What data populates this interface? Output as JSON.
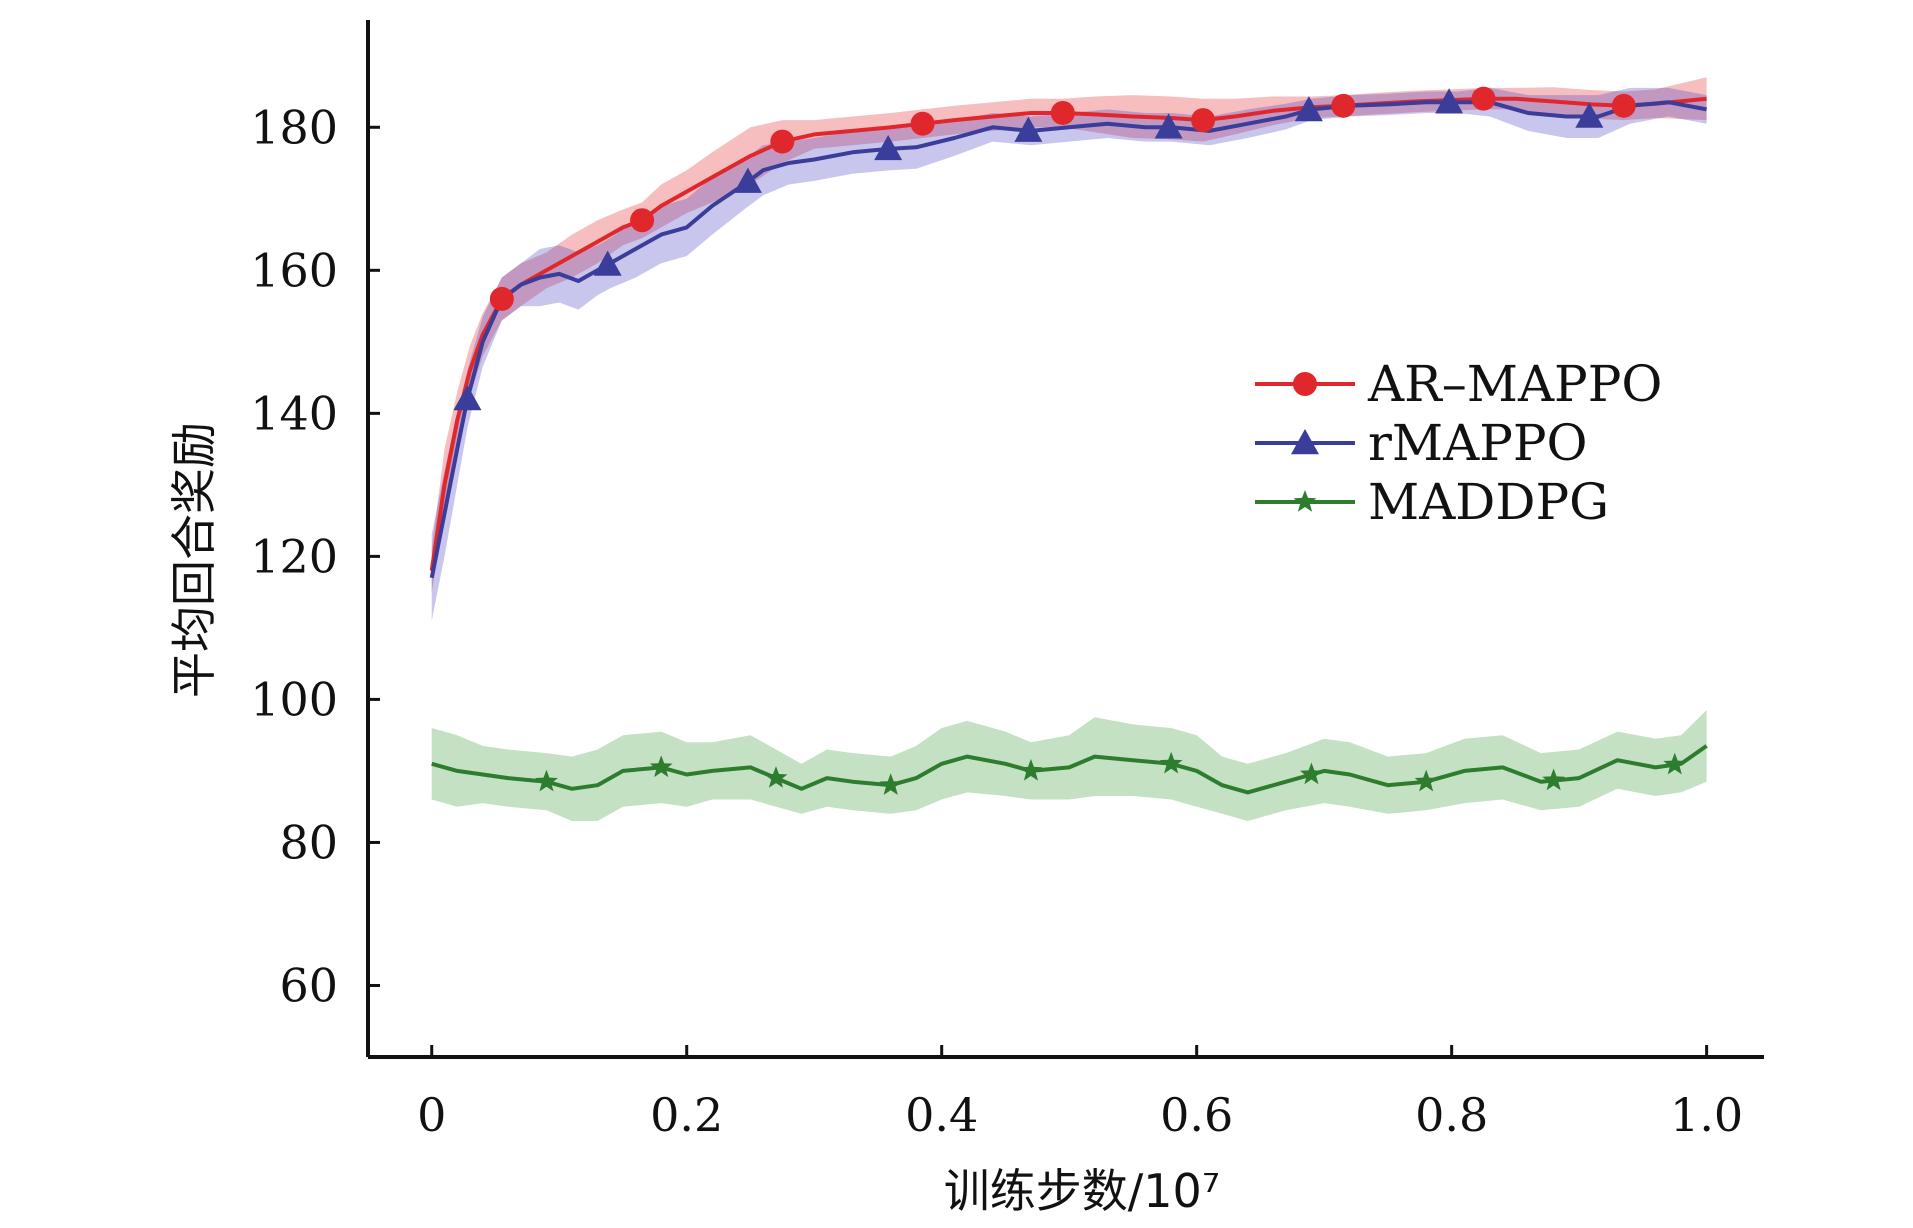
{
  "chart_data": {
    "type": "line",
    "xlabel": "训练步数/10⁷",
    "ylabel": "平均回合奖励",
    "xlim": [
      -0.05,
      1.045
    ],
    "ylim": [
      50,
      195
    ],
    "xticks": [
      0,
      0.2,
      0.4,
      0.6,
      0.8,
      1.0
    ],
    "xtick_labels": [
      "0",
      "0.2",
      "0.4",
      "0.6",
      "0.8",
      "1.0"
    ],
    "yticks": [
      60,
      80,
      100,
      120,
      140,
      160,
      180
    ],
    "ytick_labels": [
      "60",
      "80",
      "100",
      "120",
      "140",
      "160",
      "180"
    ],
    "grid": false,
    "legend_position": "right-middle",
    "series": [
      {
        "name": "AR–MAPPO",
        "color": "#e0282c",
        "band_color": "#e0282c",
        "marker": "circle",
        "x": [
          0,
          0.01,
          0.02,
          0.03,
          0.04,
          0.055,
          0.07,
          0.09,
          0.11,
          0.13,
          0.15,
          0.165,
          0.18,
          0.2,
          0.22,
          0.25,
          0.275,
          0.3,
          0.33,
          0.36,
          0.385,
          0.41,
          0.44,
          0.47,
          0.495,
          0.52,
          0.55,
          0.58,
          0.605,
          0.63,
          0.66,
          0.69,
          0.715,
          0.74,
          0.77,
          0.8,
          0.825,
          0.85,
          0.88,
          0.91,
          0.935,
          0.96,
          1.0
        ],
        "y": [
          118,
          130,
          139,
          146,
          151,
          156,
          158,
          160,
          162,
          164,
          166,
          167,
          169,
          171,
          173,
          176,
          178,
          179,
          179.5,
          180,
          180.5,
          181,
          181.5,
          182,
          182,
          181.8,
          181.5,
          181.3,
          181,
          181.5,
          182.3,
          182.8,
          183,
          183.3,
          183.6,
          183.8,
          184,
          184,
          183.6,
          183.2,
          183,
          183.3,
          184
        ],
        "band": [
          3,
          5,
          4,
          3.5,
          3,
          3,
          3,
          2.5,
          3,
          3,
          2.5,
          2.5,
          3,
          3,
          3.5,
          4,
          3,
          2,
          2,
          2,
          2,
          2,
          2,
          2,
          2,
          2.5,
          3,
          3,
          3,
          2.5,
          2,
          1.5,
          1.5,
          1.5,
          1.5,
          1.5,
          1.5,
          1.5,
          2,
          2,
          2,
          2,
          3
        ],
        "marker_x": [
          0.055,
          0.165,
          0.275,
          0.385,
          0.495,
          0.605,
          0.715,
          0.825,
          0.935
        ]
      },
      {
        "name": "rMAPPO",
        "color": "#3a3d9a",
        "band_color": "#4a42c2",
        "marker": "triangle",
        "x": [
          0,
          0.01,
          0.02,
          0.028,
          0.04,
          0.055,
          0.07,
          0.085,
          0.1,
          0.115,
          0.13,
          0.14,
          0.16,
          0.18,
          0.2,
          0.22,
          0.245,
          0.26,
          0.28,
          0.3,
          0.33,
          0.36,
          0.38,
          0.41,
          0.44,
          0.47,
          0.5,
          0.53,
          0.56,
          0.58,
          0.61,
          0.64,
          0.67,
          0.69,
          0.72,
          0.75,
          0.78,
          0.805,
          0.83,
          0.86,
          0.89,
          0.915,
          0.94,
          0.97,
          1.0
        ],
        "y": [
          117,
          126,
          135,
          142,
          150,
          156,
          158,
          159,
          159.5,
          158.5,
          160,
          161,
          163,
          165,
          166,
          169,
          172,
          174,
          175,
          175.5,
          176.5,
          177,
          177.2,
          178.5,
          180,
          179.5,
          180,
          180.5,
          180,
          180,
          179.5,
          180.5,
          181.5,
          182.5,
          183,
          183.2,
          183.5,
          183.5,
          183.5,
          182,
          181.5,
          181.5,
          183,
          183.5,
          182.5
        ],
        "band": [
          6,
          6,
          5,
          4,
          3.5,
          3,
          3,
          4,
          4,
          4,
          3.5,
          3.5,
          4,
          4,
          4,
          4,
          3.5,
          3.5,
          3,
          3,
          3,
          3,
          3,
          2.5,
          2,
          2,
          2,
          2,
          2,
          2,
          2,
          2,
          1.8,
          1.5,
          1.5,
          1.5,
          1.5,
          1.5,
          2,
          2.5,
          3,
          3,
          2.5,
          2,
          2
        ],
        "marker_x": [
          0.028,
          0.138,
          0.248,
          0.358,
          0.468,
          0.578,
          0.688,
          0.798,
          0.908
        ]
      },
      {
        "name": "MADDPG",
        "color": "#2e7d2e",
        "band_color": "#3d9a3d",
        "marker": "star",
        "x": [
          0,
          0.02,
          0.04,
          0.06,
          0.09,
          0.11,
          0.13,
          0.15,
          0.18,
          0.2,
          0.22,
          0.25,
          0.27,
          0.29,
          0.31,
          0.33,
          0.36,
          0.38,
          0.4,
          0.42,
          0.45,
          0.47,
          0.5,
          0.52,
          0.55,
          0.58,
          0.6,
          0.62,
          0.64,
          0.67,
          0.7,
          0.72,
          0.75,
          0.78,
          0.81,
          0.84,
          0.87,
          0.9,
          0.93,
          0.96,
          0.98,
          1.0
        ],
        "y": [
          91,
          90,
          89.5,
          89,
          88.5,
          87.5,
          88,
          90,
          90.5,
          89.5,
          90,
          90.5,
          89,
          87.5,
          89,
          88.5,
          88,
          89,
          91,
          92,
          91,
          90,
          90.5,
          92,
          91.5,
          91,
          90,
          88,
          87,
          88.5,
          90,
          89.5,
          88,
          88.5,
          90,
          90.5,
          88.5,
          89,
          91.5,
          90.5,
          91,
          93.5
        ],
        "band": [
          5,
          5,
          4,
          4,
          4,
          4.5,
          5,
          5,
          5,
          4.5,
          4,
          4.5,
          4,
          3.5,
          4,
          4,
          4,
          4.5,
          5,
          5,
          4.5,
          4,
          4.5,
          5.5,
          5,
          5,
          5,
          4,
          4,
          4,
          4.5,
          4.5,
          4,
          4,
          4.5,
          4.5,
          4,
          4,
          4,
          4,
          4,
          5
        ],
        "marker_x": [
          0.09,
          0.18,
          0.27,
          0.36,
          0.47,
          0.58,
          0.69,
          0.78,
          0.88,
          0.975
        ]
      }
    ]
  }
}
